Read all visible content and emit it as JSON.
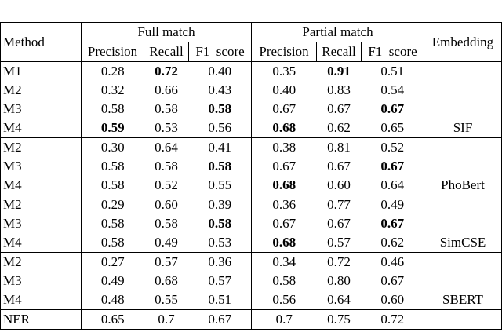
{
  "header": {
    "method": "Method",
    "full": "Full match",
    "partial": "Partial match",
    "embedding": "Embedding",
    "sub": [
      "Precision",
      "Recall",
      "F1_score",
      "Precision",
      "Recall",
      "F1_score"
    ]
  },
  "groups": [
    {
      "embedding": "SIF",
      "rows": [
        {
          "cells": [
            "M1",
            "0.28",
            "0.72",
            "0.40",
            "0.35",
            "0.91",
            "0.51"
          ],
          "bold": [
            2,
            5
          ]
        },
        {
          "cells": [
            "M2",
            "0.32",
            "0.66",
            "0.43",
            "0.40",
            "0.83",
            "0.54"
          ],
          "bold": []
        },
        {
          "cells": [
            "M3",
            "0.58",
            "0.58",
            "0.58",
            "0.67",
            "0.67",
            "0.67"
          ],
          "bold": [
            3,
            6
          ]
        },
        {
          "cells": [
            "M4",
            "0.59",
            "0.53",
            "0.56",
            "0.68",
            "0.62",
            "0.65"
          ],
          "bold": [
            1,
            4
          ]
        }
      ]
    },
    {
      "embedding": "PhoBert",
      "rows": [
        {
          "cells": [
            "M2",
            "0.30",
            "0.64",
            "0.41",
            "0.38",
            "0.81",
            "0.52"
          ],
          "bold": []
        },
        {
          "cells": [
            "M3",
            "0.58",
            "0.58",
            "0.58",
            "0.67",
            "0.67",
            "0.67"
          ],
          "bold": [
            3,
            6
          ]
        },
        {
          "cells": [
            "M4",
            "0.58",
            "0.52",
            "0.55",
            "0.68",
            "0.60",
            "0.64"
          ],
          "bold": [
            4
          ]
        }
      ]
    },
    {
      "embedding": "SimCSE",
      "rows": [
        {
          "cells": [
            "M2",
            "0.29",
            "0.60",
            "0.39",
            "0.36",
            "0.77",
            "0.49"
          ],
          "bold": []
        },
        {
          "cells": [
            "M3",
            "0.58",
            "0.58",
            "0.58",
            "0.67",
            "0.67",
            "0.67"
          ],
          "bold": [
            3,
            6
          ]
        },
        {
          "cells": [
            "M4",
            "0.58",
            "0.49",
            "0.53",
            "0.68",
            "0.57",
            "0.62"
          ],
          "bold": [
            4
          ]
        }
      ]
    },
    {
      "embedding": "SBERT",
      "rows": [
        {
          "cells": [
            "M2",
            "0.27",
            "0.57",
            "0.36",
            "0.34",
            "0.72",
            "0.46"
          ],
          "bold": []
        },
        {
          "cells": [
            "M3",
            "0.49",
            "0.68",
            "0.57",
            "0.58",
            "0.80",
            "0.67"
          ],
          "bold": []
        },
        {
          "cells": [
            "M4",
            "0.48",
            "0.55",
            "0.51",
            "0.56",
            "0.64",
            "0.60"
          ],
          "bold": []
        }
      ]
    }
  ],
  "ner": {
    "cells": [
      "NER",
      "0.65",
      "0.7",
      "0.67",
      "0.7",
      "0.75",
      "0.72"
    ],
    "bold": []
  }
}
